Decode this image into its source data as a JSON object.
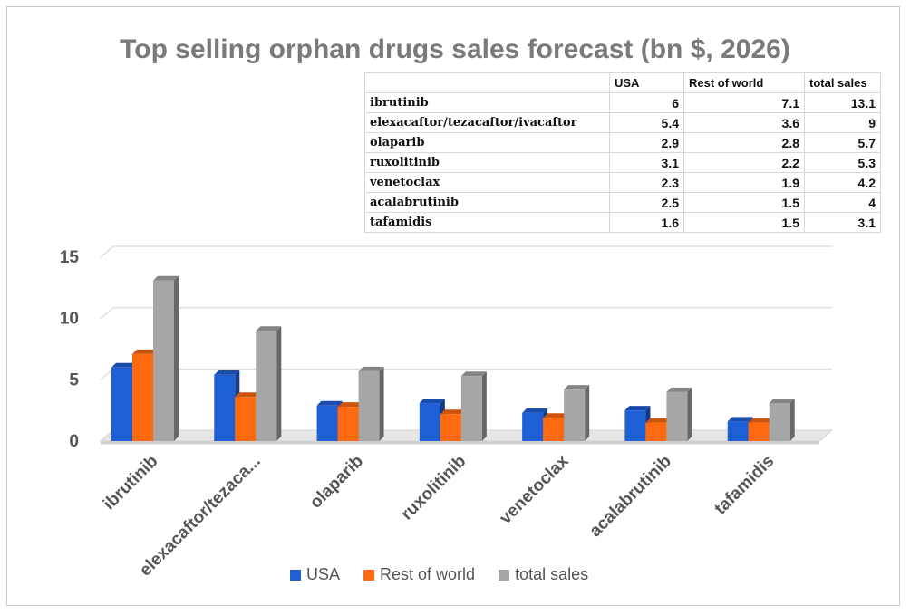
{
  "title": "Top selling orphan drugs sales forecast (bn $, 2026)",
  "table": {
    "headers": [
      "",
      "USA",
      "Rest of world",
      "total sales"
    ],
    "rows": [
      [
        "ibrutinib",
        "6",
        "7.1",
        "13.1"
      ],
      [
        "elexacaftor/tezacaftor/ivacaftor",
        "5.4",
        "3.6",
        "9"
      ],
      [
        "olaparib",
        "2.9",
        "2.8",
        "5.7"
      ],
      [
        "ruxolitinib",
        "3.1",
        "2.2",
        "5.3"
      ],
      [
        "venetoclax",
        "2.3",
        "1.9",
        "4.2"
      ],
      [
        "acalabrutinib",
        "2.5",
        "1.5",
        "4"
      ],
      [
        "tafamidis",
        "1.6",
        "1.5",
        "3.1"
      ]
    ]
  },
  "chart_data": {
    "type": "bar",
    "title": "Top selling orphan drugs sales forecast (bn $, 2026)",
    "categories": [
      "ibrutinib",
      "elexacaftor/tezaca...",
      "olaparib",
      "ruxolitinib",
      "venetoclax",
      "acalabrutinib",
      "tafamidis"
    ],
    "series": [
      {
        "name": "USA",
        "values": [
          6,
          5.4,
          2.9,
          3.1,
          2.3,
          2.5,
          1.6
        ],
        "color": "#1f5fd6"
      },
      {
        "name": "Rest of world",
        "values": [
          7.1,
          3.6,
          2.8,
          2.2,
          1.9,
          1.5,
          1.5
        ],
        "color": "#ff6a10"
      },
      {
        "name": "total sales",
        "values": [
          13.1,
          9,
          5.7,
          5.3,
          4.2,
          4,
          3.1
        ],
        "color": "#a6a6a6"
      }
    ],
    "yticks": [
      "0",
      "5",
      "10",
      "15"
    ],
    "ylim": [
      0,
      15
    ],
    "grid": true,
    "legend": "bottom",
    "style": "3d-column"
  }
}
